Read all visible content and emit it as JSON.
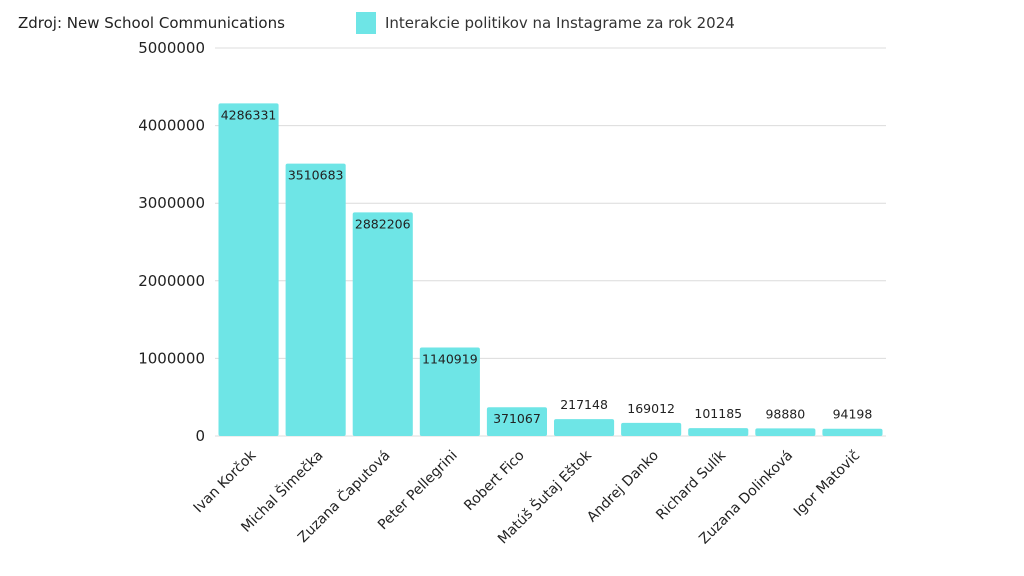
{
  "source": "Zdroj: New School Communications",
  "chart_data": {
    "type": "bar",
    "title": "",
    "xlabel": "",
    "ylabel": "",
    "ylim": [
      0,
      5000000
    ],
    "yticks": [
      "0",
      "1000000",
      "2000000",
      "3000000",
      "4000000",
      "5000000"
    ],
    "grid": true,
    "legend_position": "top",
    "bar_color": "#6ee5e6",
    "categories": [
      "Ivan Korčok",
      "Michal Šimečka",
      "Zuzana Čaputová",
      "Peter Pellegrini",
      "Robert Fico",
      "Matúš Šutaj Eštok",
      "Andrej Danko",
      "Richard Sulík",
      "Zuzana Dolinková",
      "Igor Matovič"
    ],
    "series": [
      {
        "name": "Interakcie politikov na Instagrame za rok 2024",
        "values": [
          4286331,
          3510683,
          2882206,
          1140919,
          371067,
          217148,
          169012,
          101185,
          98880,
          94198
        ],
        "labels": [
          "4286331",
          "3510683",
          "2882206",
          "1140919",
          "371067",
          "217148",
          "169012",
          "101185",
          "98880",
          "94198"
        ]
      }
    ]
  }
}
